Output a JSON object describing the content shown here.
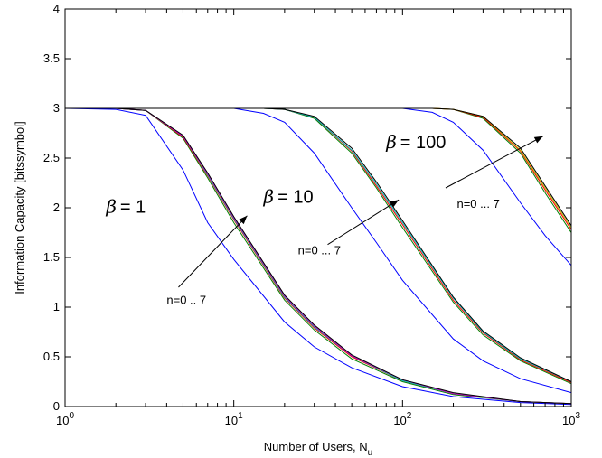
{
  "chart_data": {
    "type": "line",
    "xscale": "log",
    "xlim": [
      1,
      1000
    ],
    "ylim": [
      0,
      4
    ],
    "xlabel": "Number of Users, N",
    "xlabel_sub": "u",
    "ylabel": "Information Capacity [bitssymbol]",
    "x_ticks": [
      {
        "base": "10",
        "exp": "0",
        "value": 1
      },
      {
        "base": "10",
        "exp": "1",
        "value": 10
      },
      {
        "base": "10",
        "exp": "2",
        "value": 100
      },
      {
        "base": "10",
        "exp": "3",
        "value": 1000
      }
    ],
    "y_ticks": [
      "0",
      "0.5",
      "1",
      "1.5",
      "2",
      "2.5",
      "3",
      "3.5",
      "4"
    ],
    "grid": false,
    "annotations": [
      {
        "symbol": "β",
        "text": "= 1",
        "x": 1.75,
        "y": 1.95
      },
      {
        "symbol": "β",
        "text": "= 10",
        "x": 15,
        "y": 2.05
      },
      {
        "symbol": "β",
        "text": "= 100",
        "x": 80,
        "y": 2.6
      },
      {
        "text": "n=0 .. 7",
        "x": 4.0,
        "y": 1.03
      },
      {
        "text": "n=0 ... 7",
        "x": 24,
        "y": 1.53
      },
      {
        "text": "n=0 ... 7",
        "x": 210,
        "y": 2.0
      }
    ],
    "arrows": [
      {
        "from": [
          4.7,
          1.2
        ],
        "to": [
          12.0,
          1.92
        ]
      },
      {
        "from": [
          36,
          1.63
        ],
        "to": [
          95,
          2.08
        ]
      },
      {
        "from": [
          180,
          2.2
        ],
        "to": [
          680,
          2.72
        ]
      }
    ],
    "colors": [
      "#0000ff",
      "#008000",
      "#ff0000",
      "#00bfbf",
      "#bf00bf",
      "#bfbf00",
      "#000000",
      "#0000ff"
    ],
    "series": [
      {
        "group": "beta=1",
        "color": "#0000ff",
        "x": [
          1,
          2,
          3,
          5,
          7,
          10,
          20,
          30,
          50,
          100,
          200,
          500,
          1000
        ],
        "y": [
          3.0,
          2.99,
          2.93,
          2.38,
          1.85,
          1.48,
          0.85,
          0.6,
          0.39,
          0.2,
          0.1,
          0.04,
          0.02
        ]
      },
      {
        "group": "beta=1",
        "color": "#008000",
        "x": [
          1,
          2,
          3,
          5,
          7,
          10,
          20,
          30,
          50,
          100,
          200,
          500,
          1000
        ],
        "y": [
          3.0,
          3.0,
          2.98,
          2.7,
          2.3,
          1.85,
          1.07,
          0.77,
          0.48,
          0.25,
          0.12,
          0.05,
          0.03
        ]
      },
      {
        "group": "beta=1",
        "color": "#ff0000",
        "x": [
          1,
          2,
          3,
          5,
          7,
          10,
          20,
          30,
          50,
          100,
          200,
          500,
          1000
        ],
        "y": [
          3.0,
          3.0,
          2.98,
          2.71,
          2.32,
          1.88,
          1.09,
          0.79,
          0.5,
          0.26,
          0.13,
          0.05,
          0.03
        ]
      },
      {
        "group": "beta=1",
        "color": "#00bfbf",
        "x": [
          1,
          2,
          3,
          5,
          7,
          10,
          20,
          30,
          50,
          100,
          200,
          500,
          1000
        ],
        "y": [
          3.0,
          3.0,
          2.98,
          2.72,
          2.33,
          1.89,
          1.1,
          0.8,
          0.51,
          0.26,
          0.13,
          0.05,
          0.03
        ]
      },
      {
        "group": "beta=1",
        "color": "#bf00bf",
        "x": [
          1,
          2,
          3,
          5,
          7,
          10,
          20,
          30,
          50,
          100,
          200,
          500,
          1000
        ],
        "y": [
          3.0,
          3.0,
          2.98,
          2.72,
          2.34,
          1.9,
          1.11,
          0.81,
          0.51,
          0.27,
          0.13,
          0.05,
          0.03
        ]
      },
      {
        "group": "beta=1",
        "color": "#000000",
        "x": [
          1,
          2,
          3,
          5,
          7,
          10,
          20,
          30,
          50,
          100,
          200,
          500,
          1000
        ],
        "y": [
          3.0,
          3.0,
          2.98,
          2.73,
          2.35,
          1.91,
          1.12,
          0.82,
          0.52,
          0.27,
          0.14,
          0.05,
          0.03
        ]
      },
      {
        "group": "beta=10",
        "color": "#0000ff",
        "x": [
          1,
          10,
          15,
          20,
          30,
          50,
          70,
          100,
          200,
          300,
          500,
          1000
        ],
        "y": [
          3.0,
          3.0,
          2.95,
          2.86,
          2.55,
          2.0,
          1.65,
          1.27,
          0.68,
          0.46,
          0.28,
          0.14
        ]
      },
      {
        "group": "beta=10",
        "color": "#008000",
        "x": [
          1,
          10,
          15,
          20,
          30,
          50,
          70,
          100,
          200,
          300,
          500,
          1000
        ],
        "y": [
          3.0,
          3.0,
          3.0,
          2.99,
          2.9,
          2.55,
          2.2,
          1.8,
          1.05,
          0.72,
          0.46,
          0.23
        ]
      },
      {
        "group": "beta=10",
        "color": "#ff0000",
        "x": [
          1,
          10,
          15,
          20,
          30,
          50,
          70,
          100,
          200,
          300,
          500,
          1000
        ],
        "y": [
          3.0,
          3.0,
          3.0,
          2.99,
          2.91,
          2.57,
          2.22,
          1.83,
          1.07,
          0.74,
          0.47,
          0.24
        ]
      },
      {
        "group": "beta=10",
        "color": "#00bfbf",
        "x": [
          1,
          10,
          15,
          20,
          30,
          50,
          70,
          100,
          200,
          300,
          500,
          1000
        ],
        "y": [
          3.0,
          3.0,
          3.0,
          2.99,
          2.91,
          2.58,
          2.24,
          1.85,
          1.09,
          0.75,
          0.48,
          0.25
        ]
      },
      {
        "group": "beta=10",
        "color": "#000000",
        "x": [
          1,
          10,
          15,
          20,
          30,
          50,
          70,
          100,
          200,
          300,
          500,
          1000
        ],
        "y": [
          3.0,
          3.0,
          3.0,
          2.99,
          2.92,
          2.6,
          2.26,
          1.87,
          1.1,
          0.76,
          0.49,
          0.25
        ]
      },
      {
        "group": "beta=100",
        "color": "#0000ff",
        "x": [
          1,
          100,
          150,
          200,
          300,
          500,
          700,
          1000
        ],
        "y": [
          3.0,
          3.0,
          2.96,
          2.86,
          2.58,
          2.05,
          1.72,
          1.42
        ]
      },
      {
        "group": "beta=100",
        "color": "#008000",
        "x": [
          1,
          100,
          150,
          200,
          300,
          500,
          700,
          1000
        ],
        "y": [
          3.0,
          3.0,
          3.0,
          2.99,
          2.9,
          2.55,
          2.15,
          1.75
        ]
      },
      {
        "group": "beta=100",
        "color": "#ff0000",
        "x": [
          1,
          100,
          150,
          200,
          300,
          500,
          700,
          1000
        ],
        "y": [
          3.0,
          3.0,
          3.0,
          2.99,
          2.91,
          2.57,
          2.18,
          1.78
        ]
      },
      {
        "group": "beta=100",
        "color": "#bfbf00",
        "x": [
          1,
          100,
          150,
          200,
          300,
          500,
          700,
          1000
        ],
        "y": [
          3.0,
          3.0,
          3.0,
          2.99,
          2.92,
          2.58,
          2.2,
          1.8
        ]
      },
      {
        "group": "beta=100",
        "color": "#000000",
        "x": [
          1,
          100,
          150,
          200,
          300,
          500,
          700,
          1000
        ],
        "y": [
          3.0,
          3.0,
          3.0,
          2.99,
          2.92,
          2.6,
          2.22,
          1.82
        ]
      }
    ]
  }
}
